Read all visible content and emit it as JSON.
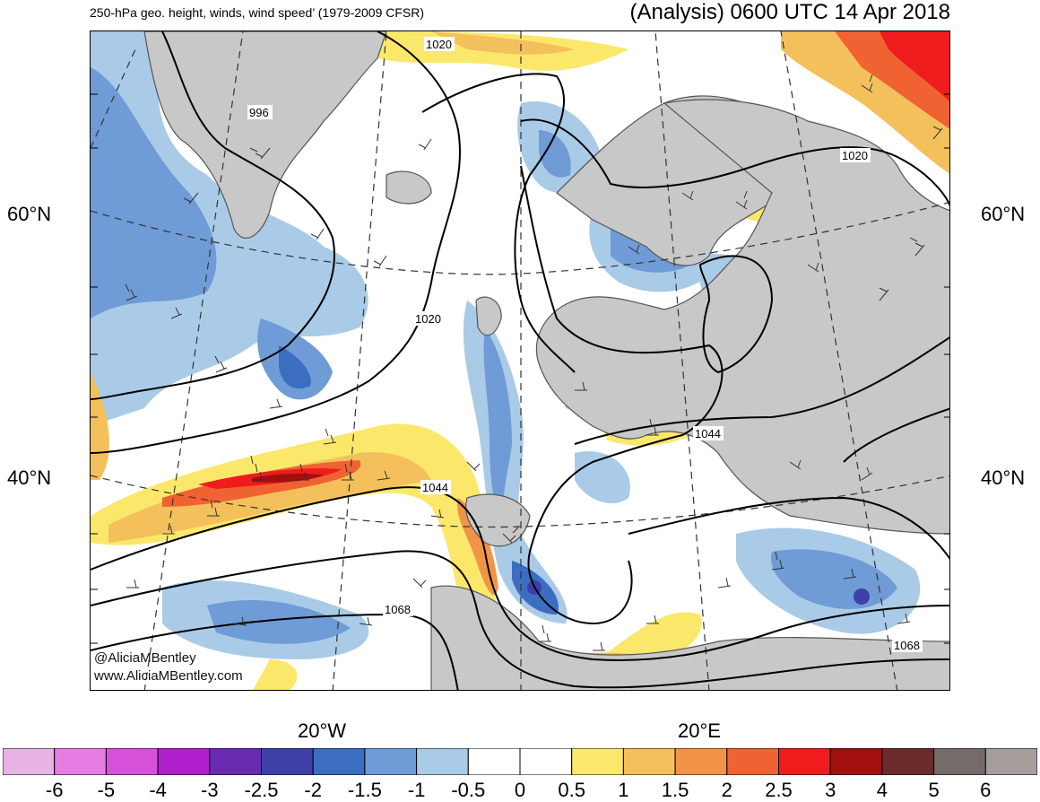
{
  "header": {
    "title_left": "250-hPa geo. height, winds, wind speed’ (1979-2009 CFSR)",
    "title_right": "(Analysis) 0600 UTC 14 Apr 2018"
  },
  "map": {
    "lat_labels": [
      "60°N",
      "40°N"
    ],
    "lon_labels": [
      "20°W",
      "20°E"
    ],
    "contour_labels": [
      "1020",
      "996",
      "1020",
      "1020",
      "1044",
      "1044",
      "1068",
      "1068"
    ],
    "credit_line1": "@AliciaMBentley",
    "credit_line2": "www.AliciaMBentley.com",
    "colors": {
      "land_gray": "#c8c8c8",
      "coast": "#555555"
    }
  },
  "colorbar": {
    "labels": [
      "-6",
      "-5",
      "-4",
      "-3",
      "-2.5",
      "-2",
      "-1.5",
      "-1",
      "-0.5",
      "0",
      "0.5",
      "1",
      "1.5",
      "2",
      "2.5",
      "3",
      "4",
      "5",
      "6"
    ],
    "colors": [
      "#e9b3e6",
      "#e57de3",
      "#d650da",
      "#b01fcc",
      "#6a2ab0",
      "#3f3fa8",
      "#3b6dc0",
      "#6f9bd6",
      "#a9cbe7",
      "#ffffff",
      "#ffffff",
      "#fbe86b",
      "#f4c05c",
      "#f29447",
      "#f06232",
      "#ee1c1c",
      "#a10f0f",
      "#6b2b2b",
      "#756c6a",
      "#a59e9d"
    ]
  }
}
